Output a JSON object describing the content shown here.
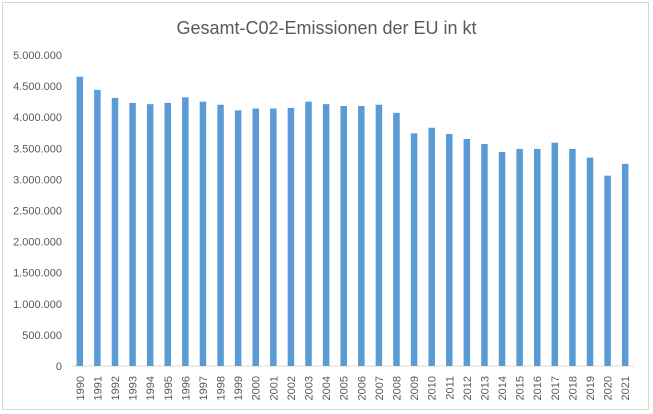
{
  "chart_data": {
    "type": "bar",
    "title": "Gesamt-C02-Emissionen der EU in kt",
    "xlabel": "",
    "ylabel": "",
    "ylim": [
      0,
      5000000
    ],
    "ytick_step": 500000,
    "yticks": [
      "0",
      "500.000",
      "1.000.000",
      "1.500.000",
      "2.000.000",
      "2.500.000",
      "3.000.000",
      "3.500.000",
      "4.000.000",
      "4.500.000",
      "5.000.000"
    ],
    "grid": false,
    "legend": "none",
    "bar_color": "#5b9bd5",
    "categories": [
      "1990",
      "1991",
      "1992",
      "1993",
      "1994",
      "1995",
      "1996",
      "1997",
      "1998",
      "1999",
      "2000",
      "2001",
      "2002",
      "2003",
      "2004",
      "2005",
      "2006",
      "2007",
      "2008",
      "2009",
      "2010",
      "2011",
      "2012",
      "2013",
      "2014",
      "2015",
      "2016",
      "2017",
      "2018",
      "2019",
      "2020",
      "2021"
    ],
    "values": [
      4650000,
      4440000,
      4310000,
      4230000,
      4210000,
      4230000,
      4320000,
      4250000,
      4200000,
      4110000,
      4140000,
      4140000,
      4150000,
      4250000,
      4210000,
      4180000,
      4180000,
      4200000,
      4070000,
      3740000,
      3830000,
      3730000,
      3650000,
      3570000,
      3440000,
      3490000,
      3490000,
      3590000,
      3490000,
      3350000,
      3060000,
      3250000
    ]
  }
}
